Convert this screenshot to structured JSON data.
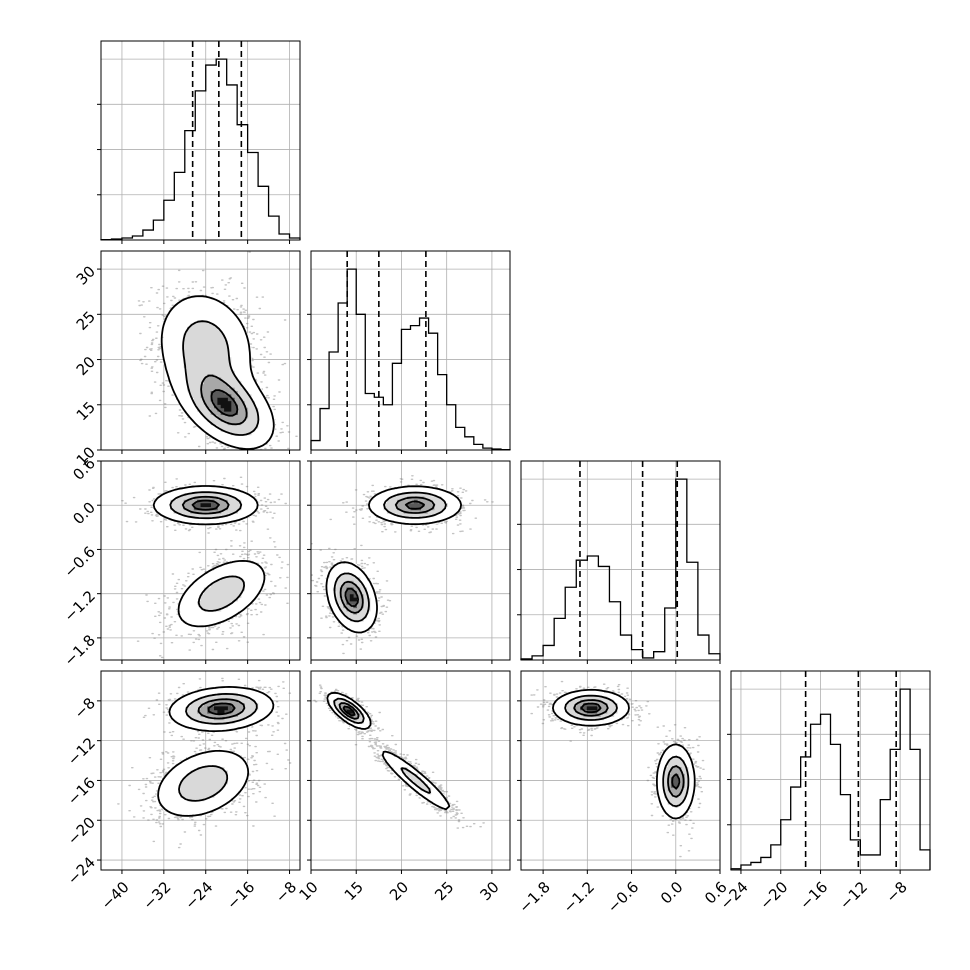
{
  "chart_data": {
    "type": "corner",
    "grid": true,
    "parameters": [
      {
        "range": [
          -44,
          -6
        ],
        "ticks": [
          -40,
          -32,
          -24,
          -16,
          -8
        ],
        "tick_labels": [
          "−40",
          "−32",
          "−24",
          "−16",
          "−8"
        ],
        "quantiles": [
          -26.5,
          -21.5,
          -17.2
        ],
        "hist": {
          "edges": [
            -44,
            -42,
            -40,
            -38,
            -36,
            -34,
            -32,
            -30,
            -28,
            -26,
            -24,
            -22,
            -20,
            -18,
            -16,
            -14,
            -12,
            -10,
            -8,
            -6
          ],
          "counts": [
            0.002,
            0.005,
            0.01,
            0.02,
            0.05,
            0.1,
            0.2,
            0.34,
            0.55,
            0.75,
            0.88,
            0.91,
            0.78,
            0.58,
            0.44,
            0.27,
            0.12,
            0.03,
            0.01
          ]
        }
      },
      {
        "range": [
          10,
          32
        ],
        "ticks": [
          10,
          15,
          20,
          25,
          30
        ],
        "tick_labels": [
          "10",
          "15",
          "20",
          "25",
          "30"
        ],
        "quantiles": [
          14.0,
          17.5,
          22.7
        ],
        "hist": {
          "edges": [
            10,
            11,
            12,
            13,
            14,
            15,
            16,
            17,
            18,
            19,
            20,
            21,
            22,
            23,
            24,
            25,
            26,
            27,
            28,
            29,
            30,
            31,
            32
          ],
          "counts": [
            0.05,
            0.22,
            0.52,
            0.78,
            0.96,
            0.72,
            0.3,
            0.28,
            0.24,
            0.46,
            0.64,
            0.66,
            0.7,
            0.62,
            0.4,
            0.24,
            0.12,
            0.07,
            0.03,
            0.01,
            0.005,
            0.002
          ]
        }
      },
      {
        "range": [
          -2.1,
          0.6
        ],
        "ticks": [
          -1.8,
          -1.2,
          -0.6,
          0.0,
          0.6
        ],
        "tick_labels": [
          "−1.8",
          "−1.2",
          "−0.6",
          "0.0",
          "0.6"
        ],
        "quantiles": [
          -1.3,
          -0.45,
          0.02
        ],
        "hist": {
          "edges": [
            -2.1,
            -1.95,
            -1.8,
            -1.65,
            -1.5,
            -1.35,
            -1.2,
            -1.05,
            -0.9,
            -0.75,
            -0.6,
            -0.45,
            -0.3,
            -0.15,
            0.0,
            0.15,
            0.3,
            0.45,
            0.6
          ],
          "counts": [
            0.005,
            0.02,
            0.07,
            0.2,
            0.35,
            0.48,
            0.5,
            0.45,
            0.28,
            0.12,
            0.05,
            0.01,
            0.04,
            0.25,
            0.87,
            0.47,
            0.12,
            0.03
          ]
        }
      },
      {
        "range": [
          -25,
          -5
        ],
        "ticks": [
          -24,
          -20,
          -16,
          -12,
          -8
        ],
        "tick_labels": [
          "−24",
          "−20",
          "−16",
          "−12",
          "−8"
        ],
        "quantiles": [
          -17.5,
          -12.2,
          -8.4
        ],
        "hist": {
          "edges": [
            -25,
            -24,
            -23,
            -22,
            -21,
            -20,
            -19,
            -18,
            -17,
            -16,
            -15,
            -14,
            -13,
            -12,
            -11,
            -10,
            -9,
            -8,
            -7,
            -6,
            -5
          ],
          "counts": [
            0.005,
            0.02,
            0.03,
            0.05,
            0.1,
            0.2,
            0.33,
            0.45,
            0.58,
            0.62,
            0.5,
            0.3,
            0.12,
            0.06,
            0.06,
            0.28,
            0.48,
            0.72,
            0.48,
            0.08
          ]
        }
      }
    ],
    "pair_modes": [
      {
        "row": 1,
        "col": 0,
        "modes": [
          {
            "mx": -24,
            "my": 21.5,
            "sx": 5.0,
            "sy": 3.3,
            "rho": -0.15,
            "w": 0.5
          },
          {
            "mx": -20,
            "my": 14.8,
            "sx": 4.6,
            "sy": 2.4,
            "rho": -0.45,
            "w": 0.5
          }
        ]
      },
      {
        "row": 2,
        "col": 0,
        "modes": [
          {
            "mx": -24,
            "my": 0.0,
            "sx": 5.0,
            "sy": 0.13,
            "rho": 0.0,
            "w": 0.5
          },
          {
            "mx": -21,
            "my": -1.2,
            "sx": 4.8,
            "sy": 0.26,
            "rho": 0.5,
            "w": 0.5
          }
        ]
      },
      {
        "row": 2,
        "col": 1,
        "modes": [
          {
            "mx": 21.5,
            "my": 0.0,
            "sx": 2.6,
            "sy": 0.13,
            "rho": 0.0,
            "w": 0.5
          },
          {
            "mx": 14.5,
            "my": -1.25,
            "sx": 1.4,
            "sy": 0.24,
            "rho": -0.3,
            "w": 0.5
          }
        ]
      },
      {
        "row": 3,
        "col": 0,
        "modes": [
          {
            "mx": -21,
            "my": -8.8,
            "sx": 5.0,
            "sy": 1.1,
            "rho": 0.15,
            "w": 0.5
          },
          {
            "mx": -24.5,
            "my": -16.3,
            "sx": 5.0,
            "sy": 1.9,
            "rho": 0.35,
            "w": 0.5
          }
        ]
      },
      {
        "row": 3,
        "col": 1,
        "modes": [
          {
            "mx": 14.2,
            "my": -9.0,
            "sx": 1.2,
            "sy": 0.9,
            "rho": -0.7,
            "w": 0.5
          },
          {
            "mx": 21.6,
            "my": -16.0,
            "sx": 2.3,
            "sy": 1.8,
            "rho": -0.93,
            "w": 0.5
          }
        ]
      },
      {
        "row": 3,
        "col": 2,
        "modes": [
          {
            "mx": -1.15,
            "my": -8.7,
            "sx": 0.26,
            "sy": 0.9,
            "rho": 0.0,
            "w": 0.5
          },
          {
            "mx": 0.0,
            "my": -16.1,
            "sx": 0.13,
            "sy": 1.9,
            "rho": 0.0,
            "w": 0.5
          }
        ]
      }
    ]
  }
}
